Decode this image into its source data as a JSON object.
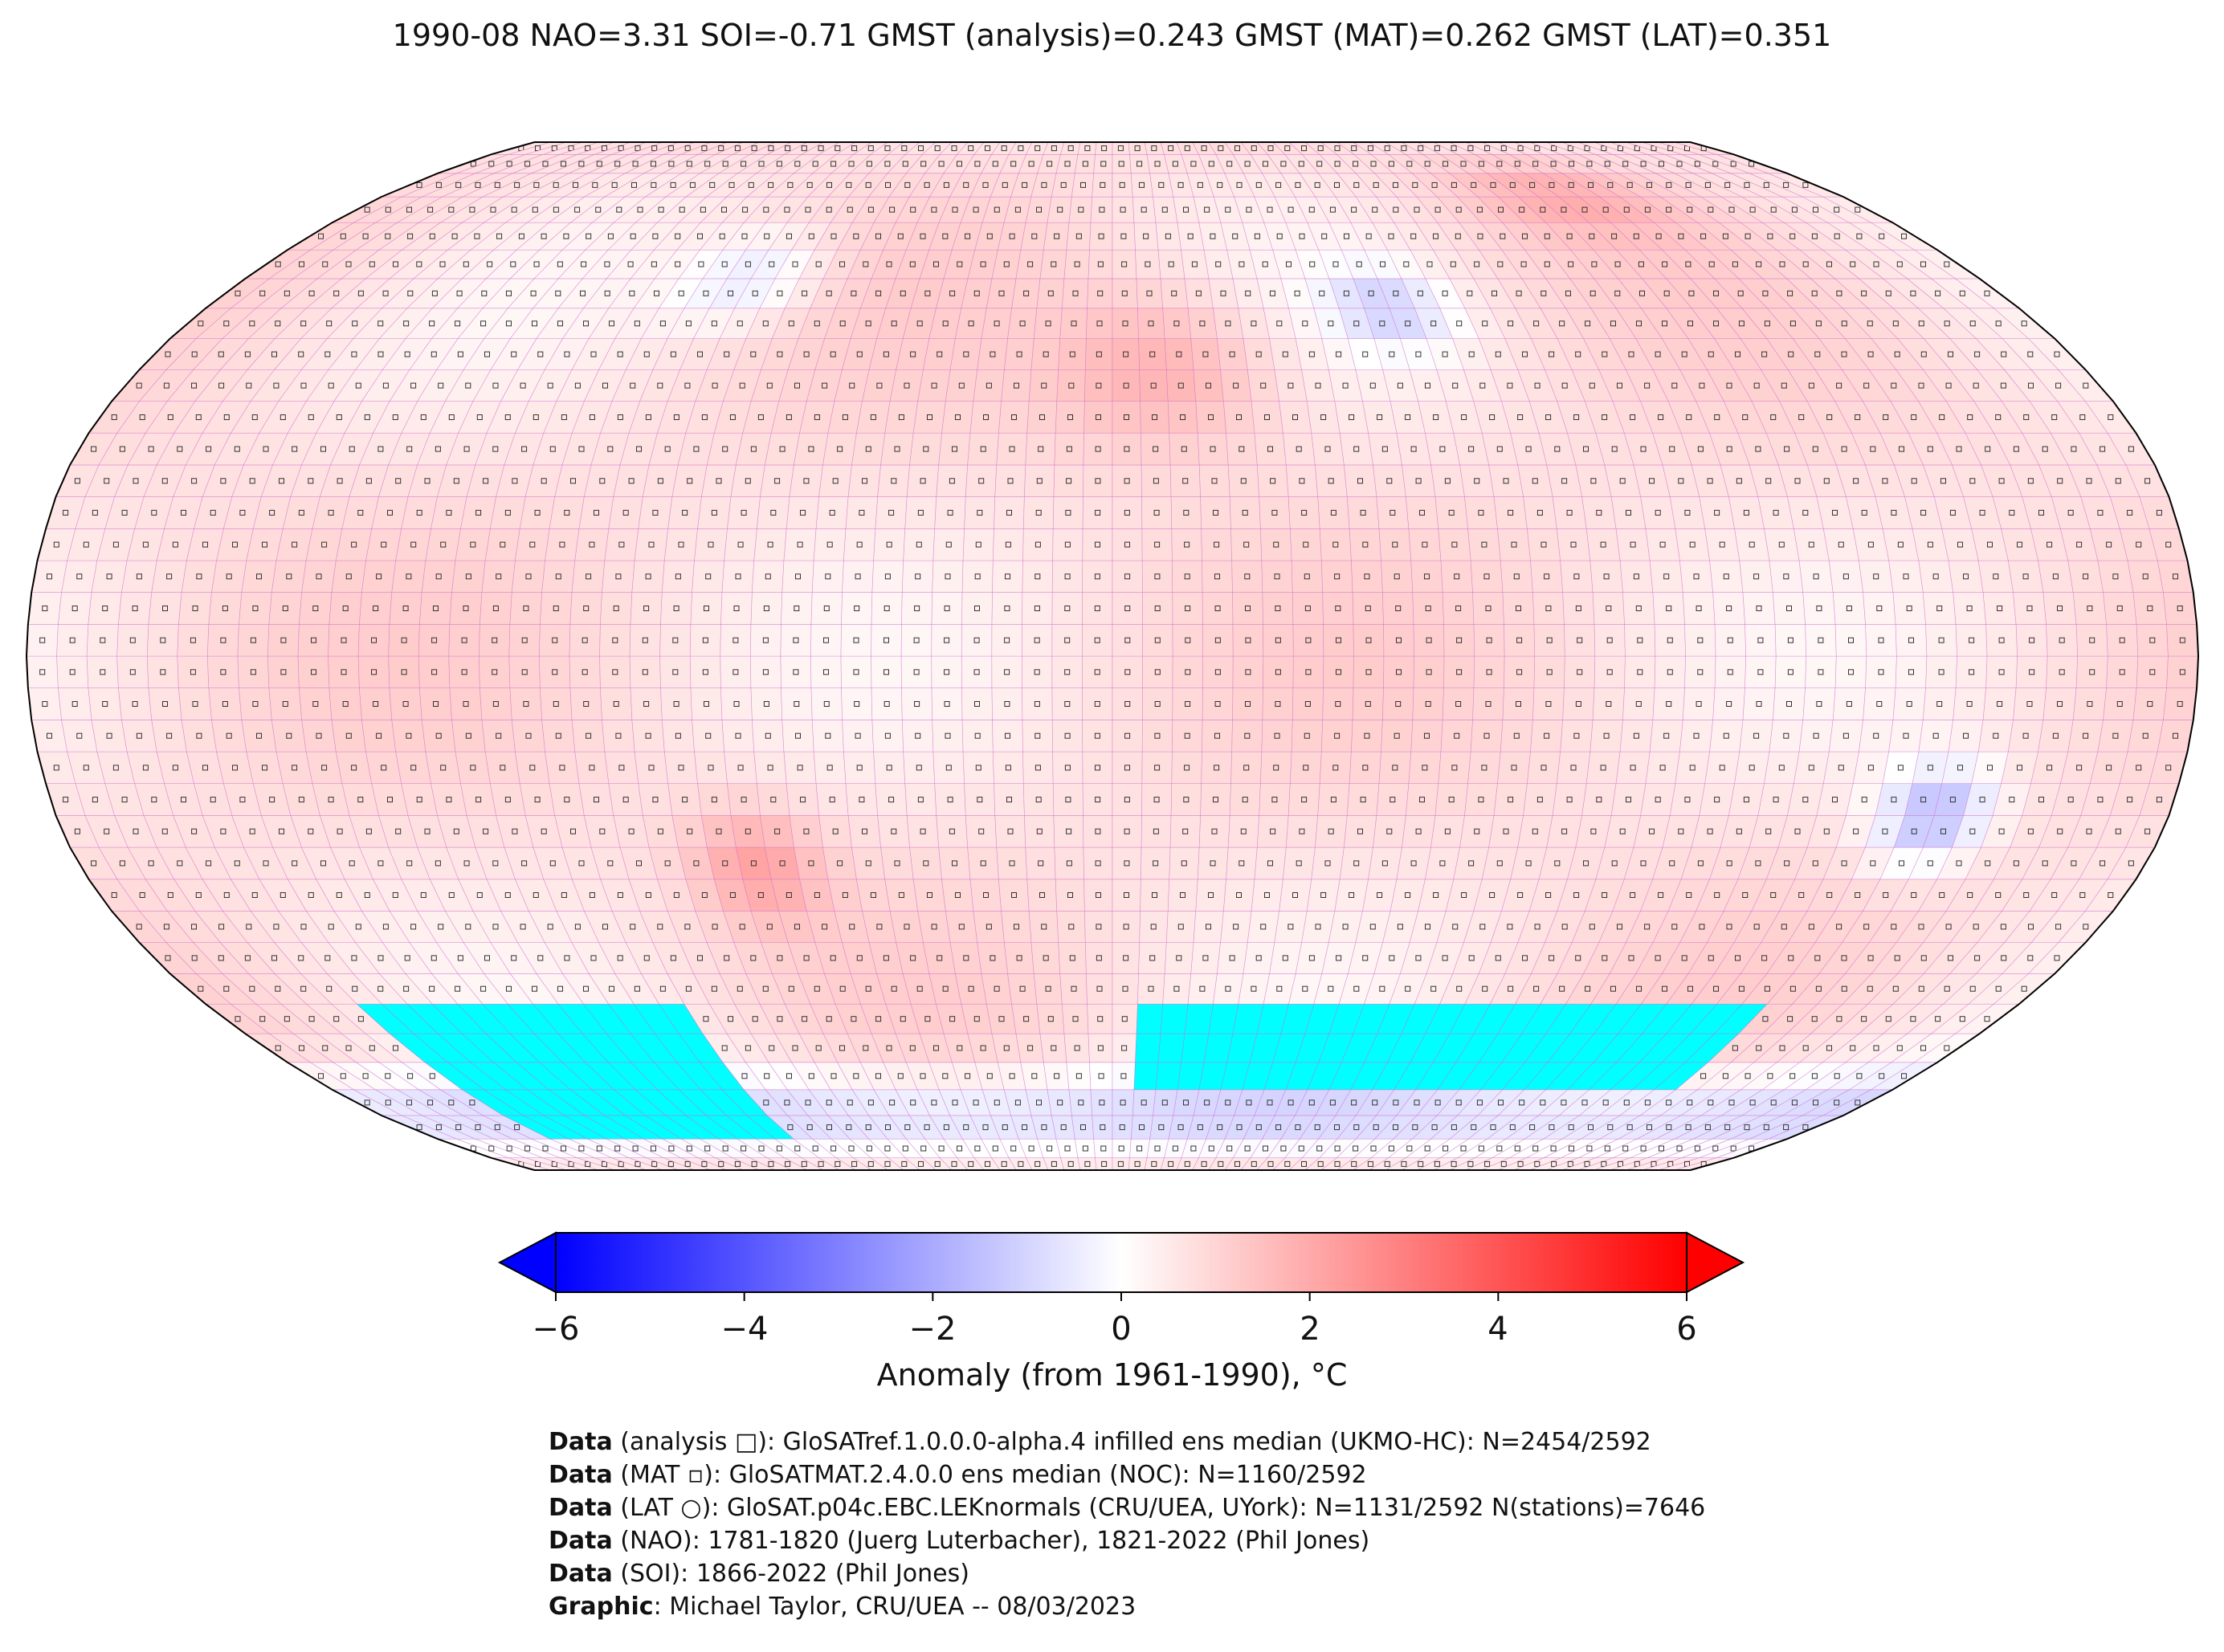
{
  "title": "1990-08 NAO=3.31 SOI=-0.71 GMST (analysis)=0.243 GMST (MAT)=0.262 GMST (LAT)=0.351",
  "colorbar": {
    "ticks": [
      "−6",
      "−4",
      "−2",
      "0",
      "2",
      "4",
      "6"
    ],
    "tick_values": [
      -6,
      -4,
      -2,
      0,
      2,
      4,
      6
    ],
    "range": [
      -6,
      6
    ],
    "colormap": "bwr",
    "extend": "both",
    "label": "Anomaly (from 1961-1990), °C"
  },
  "map": {
    "projection": "Robinson",
    "missing_color": "#00ffff",
    "grid_color": "#cc66cc"
  },
  "credits": [
    {
      "bold": "Data",
      "text": " (analysis □): GloSATref.1.0.0.0-alpha.4 infilled ens median (UKMO-HC): N=2454/2592"
    },
    {
      "bold": "Data",
      "text": " (MAT ▫): GloSATMAT.2.4.0.0 ens median (NOC): N=1160/2592"
    },
    {
      "bold": "Data",
      "text": " (LAT ○): GloSAT.p04c.EBC.LEKnormals (CRU/UEA, UYork): N=1131/2592 N(stations)=7646"
    },
    {
      "bold": "Data",
      "text": " (NAO): 1781-1820 (Juerg Luterbacher), 1821-2022 (Phil Jones)"
    },
    {
      "bold": "Data",
      "text": " (SOI): 1866-2022 (Phil Jones)"
    },
    {
      "bold": "Graphic",
      "text": ": Michael Taylor, CRU/UEA -- 08/03/2023"
    }
  ]
}
